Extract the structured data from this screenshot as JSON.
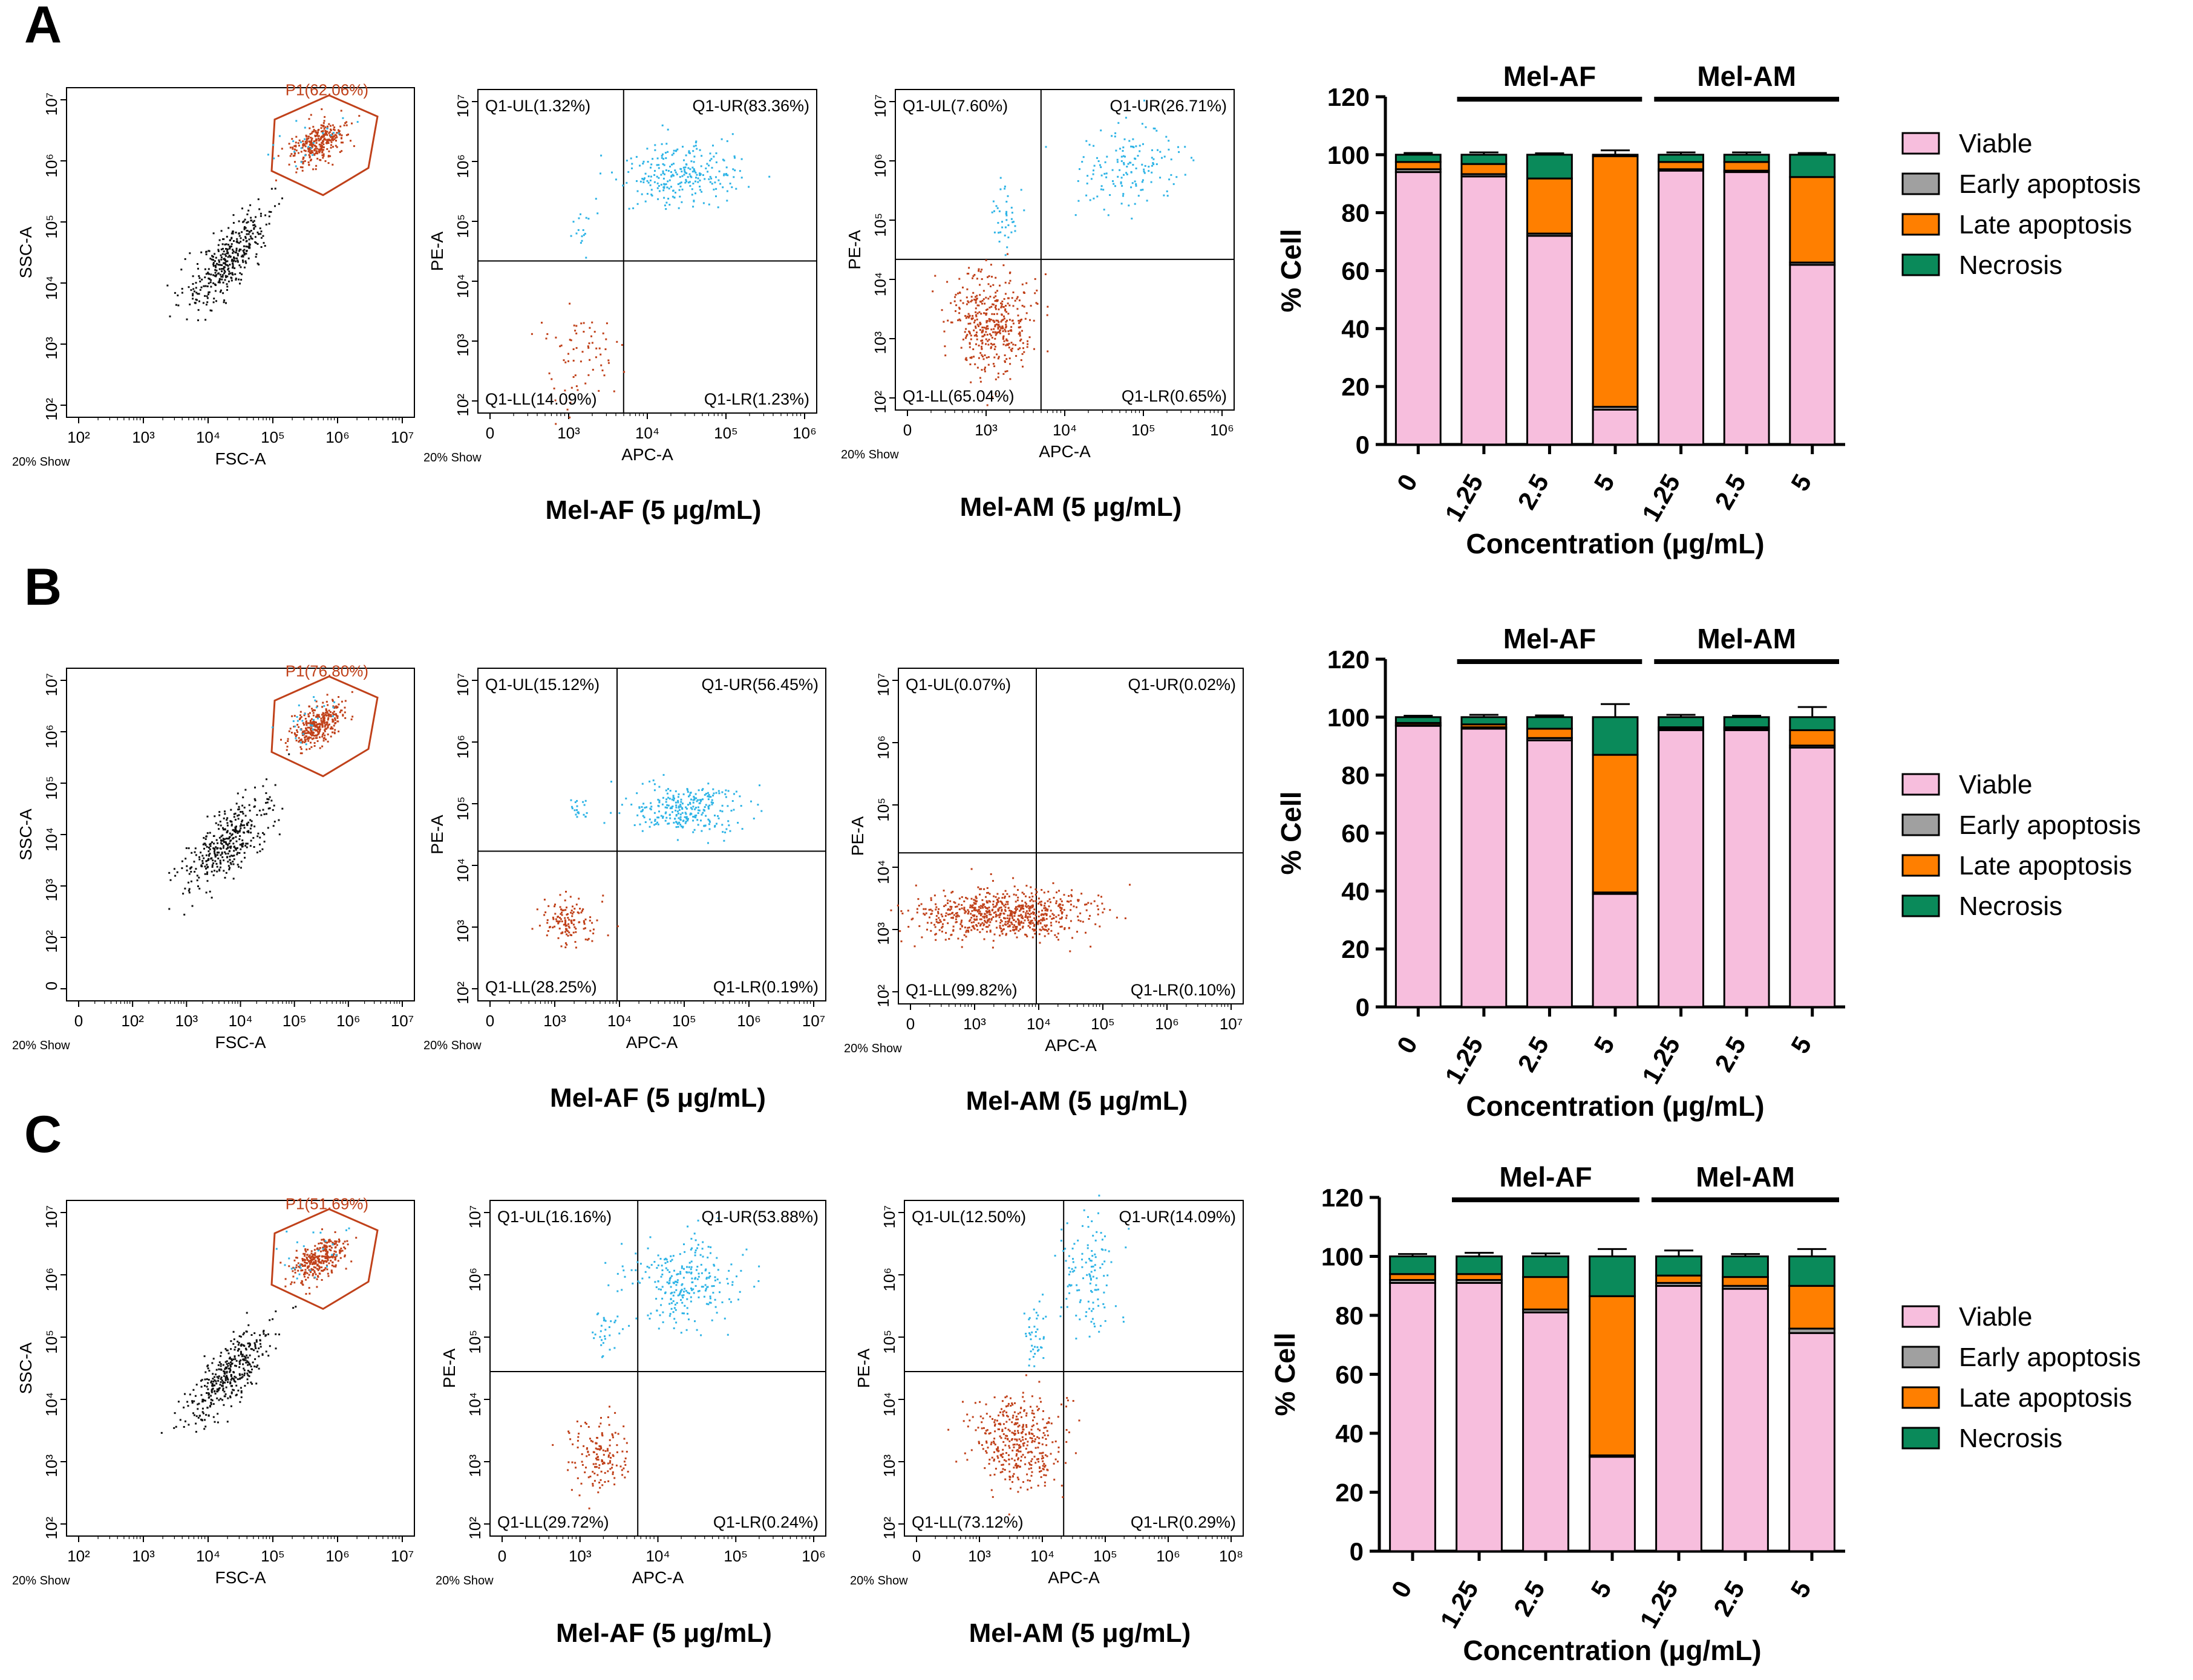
{
  "colors": {
    "viable": "#f7bedd",
    "early": "#a0a0a0",
    "late": "#ff7f00",
    "necrosis": "#0a8a5a",
    "live_dots": "#c0411a",
    "apoptotic_dots": "#2fb4e6",
    "debris_dots": "#111111",
    "gate": "#c0411a"
  },
  "panels": [
    {
      "letter": "A",
      "gate_plot": {
        "gate_label": "P1(62.06%)",
        "y_label": "SSC-A",
        "x_label": "FSC-A",
        "show_label": "20% Show",
        "x_ticks": [
          "10²",
          "10³",
          "10⁴",
          "10⁵",
          "10⁶",
          "10⁷"
        ],
        "y_ticks": [
          "10⁷",
          "10⁶",
          "10⁵",
          "10⁴",
          "10³",
          "10²"
        ]
      },
      "quadrant_plots": [
        {
          "caption": "Mel-AF (5 μg/mL)",
          "x_label": "APC-A",
          "y_label": "PE-A",
          "show_label": "20% Show",
          "ul": "Q1-UL(1.32%)",
          "ur": "Q1-UR(83.36%)",
          "ll": "Q1-LL(14.09%)",
          "lr": "Q1-LR(1.23%)",
          "x_ticks": [
            "0",
            "10³",
            "10⁴",
            "10⁵",
            "10⁶"
          ],
          "y_ticks": [
            "10⁷",
            "10⁶",
            "10⁵",
            "10⁴",
            "10³",
            "10²"
          ]
        },
        {
          "caption": "Mel-AM (5 μg/mL)",
          "x_label": "APC-A",
          "y_label": "PE-A",
          "show_label": "20% Show",
          "ul": "Q1-UL(7.60%)",
          "ur": "Q1-UR(26.71%)",
          "ll": "Q1-LL(65.04%)",
          "lr": "Q1-LR(0.65%)",
          "x_ticks": [
            "0",
            "10³",
            "10⁴",
            "10⁵",
            "10⁶"
          ],
          "y_ticks": [
            "10⁷",
            "10⁶",
            "10⁵",
            "10⁴",
            "10³",
            "10²"
          ]
        }
      ]
    },
    {
      "letter": "B",
      "gate_plot": {
        "gate_label": "P1(76.80%)",
        "y_label": "SSC-A",
        "x_label": "FSC-A",
        "show_label": "20% Show",
        "x_ticks": [
          "0",
          "10²",
          "10³",
          "10⁴",
          "10⁵",
          "10⁶",
          "10⁷"
        ],
        "y_ticks": [
          "10⁷",
          "10⁶",
          "10⁵",
          "10⁴",
          "10³",
          "10²",
          "0"
        ]
      },
      "quadrant_plots": [
        {
          "caption": "Mel-AF (5 μg/mL)",
          "x_label": "APC-A",
          "y_label": "PE-A",
          "show_label": "20% Show",
          "ul": "Q1-UL(15.12%)",
          "ur": "Q1-UR(56.45%)",
          "ll": "Q1-LL(28.25%)",
          "lr": "Q1-LR(0.19%)",
          "x_ticks": [
            "0",
            "10³",
            "10⁴",
            "10⁵",
            "10⁶",
            "10⁷"
          ],
          "y_ticks": [
            "10⁷",
            "10⁶",
            "10⁵",
            "10⁴",
            "10³",
            "10²"
          ]
        },
        {
          "caption": "Mel-AM (5 μg/mL)",
          "x_label": "APC-A",
          "y_label": "PE-A",
          "show_label": "20% Show",
          "ul": "Q1-UL(0.07%)",
          "ur": "Q1-UR(0.02%)",
          "ll": "Q1-LL(99.82%)",
          "lr": "Q1-LR(0.10%)",
          "x_ticks": [
            "0",
            "10³",
            "10⁴",
            "10⁵",
            "10⁶",
            "10⁷"
          ],
          "y_ticks": [
            "10⁷",
            "10⁶",
            "10⁵",
            "10⁴",
            "10³",
            "10²"
          ]
        }
      ]
    },
    {
      "letter": "C",
      "gate_plot": {
        "gate_label": "P1(51.69%)",
        "y_label": "SSC-A",
        "x_label": "FSC-A",
        "show_label": "20% Show",
        "x_ticks": [
          "10²",
          "10³",
          "10⁴",
          "10⁵",
          "10⁶",
          "10⁷"
        ],
        "y_ticks": [
          "10⁷",
          "10⁶",
          "10⁵",
          "10⁴",
          "10³",
          "10²"
        ]
      },
      "quadrant_plots": [
        {
          "caption": "Mel-AF (5 μg/mL)",
          "x_label": "APC-A",
          "y_label": "PE-A",
          "show_label": "20% Show",
          "ul": "Q1-UL(16.16%)",
          "ur": "Q1-UR(53.88%)",
          "ll": "Q1-LL(29.72%)",
          "lr": "Q1-LR(0.24%)",
          "x_ticks": [
            "0",
            "10³",
            "10⁴",
            "10⁵",
            "10⁶"
          ],
          "y_ticks": [
            "10⁷",
            "10⁶",
            "10⁵",
            "10⁴",
            "10³",
            "10²"
          ]
        },
        {
          "caption": "Mel-AM (5 μg/mL)",
          "x_label": "APC-A",
          "y_label": "PE-A",
          "show_label": "20% Show",
          "ul": "Q1-UL(12.50%)",
          "ur": "Q1-UR(14.09%)",
          "ll": "Q1-LL(73.12%)",
          "lr": "Q1-LR(0.29%)",
          "x_ticks": [
            "0",
            "10³",
            "10⁴",
            "10⁵",
            "10⁶",
            "10⁸"
          ],
          "y_ticks": [
            "10⁷",
            "10⁶",
            "10⁵",
            "10⁴",
            "10³",
            "10²"
          ]
        }
      ]
    }
  ],
  "chart_data": [
    {
      "type": "bar",
      "stacked": true,
      "panel": "A",
      "categories": [
        "0",
        "1.25",
        "2.5",
        "5",
        "1.25",
        "2.5",
        "5"
      ],
      "groups": [
        {
          "label": "Mel-AF",
          "from": 1,
          "to": 3
        },
        {
          "label": "Mel-AM",
          "from": 4,
          "to": 6
        }
      ],
      "series": [
        {
          "name": "Viable",
          "key": "viable",
          "values": [
            94,
            92.5,
            72,
            12,
            94.5,
            94,
            62
          ],
          "errors": [
            0.8,
            0.8,
            1,
            1,
            0.8,
            0.8,
            7
          ]
        },
        {
          "name": "Early apoptosis",
          "key": "early",
          "values": [
            1,
            0.8,
            0.8,
            1,
            0.5,
            0.5,
            0.8
          ]
        },
        {
          "name": "Late apoptosis",
          "key": "late",
          "values": [
            2.5,
            3.5,
            19,
            86.5,
            2.5,
            3,
            29.5
          ],
          "errors": [
            0.5,
            0.5,
            0.8,
            0.5,
            0.5,
            0.5,
            7
          ]
        },
        {
          "name": "Necrosis",
          "key": "necrosis",
          "values": [
            2.5,
            3.2,
            8.2,
            0.5,
            2.5,
            2.5,
            7.7
          ],
          "errors": [
            0.6,
            0.8,
            0.5,
            1.5,
            0.8,
            0.8,
            0.6
          ]
        }
      ],
      "ylabel": "% Cell",
      "xlabel": "Concentration (μg/mL)",
      "ylim": [
        0,
        120
      ],
      "yticks": [
        0,
        20,
        40,
        60,
        80,
        100,
        120
      ]
    },
    {
      "type": "bar",
      "stacked": true,
      "panel": "B",
      "categories": [
        "0",
        "1.25",
        "2.5",
        "5",
        "1.25",
        "2.5",
        "5"
      ],
      "groups": [
        {
          "label": "Mel-AF",
          "from": 1,
          "to": 3
        },
        {
          "label": "Mel-AM",
          "from": 4,
          "to": 6
        }
      ],
      "series": [
        {
          "name": "Viable",
          "key": "viable",
          "values": [
            97,
            96,
            92,
            39,
            95.5,
            95.5,
            89.5
          ],
          "errors": [
            0.3,
            0.5,
            0.6,
            15,
            0.4,
            0.5,
            0.8
          ]
        },
        {
          "name": "Early apoptosis",
          "key": "early",
          "values": [
            0.3,
            0.5,
            0.8,
            0.5,
            0.5,
            0.5,
            0.7
          ]
        },
        {
          "name": "Late apoptosis",
          "key": "late",
          "values": [
            0.7,
            1,
            3.2,
            47.5,
            0.5,
            0.5,
            5.3
          ],
          "errors": [
            0.2,
            0.3,
            1,
            0.6,
            0.2,
            0.2,
            1.2
          ]
        },
        {
          "name": "Necrosis",
          "key": "necrosis",
          "values": [
            2,
            2.5,
            4,
            13,
            3.5,
            3.5,
            4.5
          ],
          "errors": [
            0.5,
            0.8,
            0.6,
            4.5,
            0.8,
            0.5,
            3.5
          ]
        }
      ],
      "ylabel": "% Cell",
      "xlabel": "Concentration (μg/mL)",
      "ylim": [
        0,
        120
      ],
      "yticks": [
        0,
        20,
        40,
        60,
        80,
        100,
        120
      ]
    },
    {
      "type": "bar",
      "stacked": true,
      "panel": "C",
      "categories": [
        "0",
        "1.25",
        "2.5",
        "5",
        "1.25",
        "2.5",
        "5"
      ],
      "groups": [
        {
          "label": "Mel-AF",
          "from": 1,
          "to": 3
        },
        {
          "label": "Mel-AM",
          "from": 4,
          "to": 6
        }
      ],
      "series": [
        {
          "name": "Viable",
          "key": "viable",
          "values": [
            91,
            91,
            81,
            32,
            90,
            89,
            74
          ],
          "errors": [
            0.8,
            0.8,
            1,
            5,
            0.8,
            1,
            3.5
          ]
        },
        {
          "name": "Early apoptosis",
          "key": "early",
          "values": [
            1,
            1,
            1,
            0.5,
            1,
            1,
            1.5
          ]
        },
        {
          "name": "Late apoptosis",
          "key": "late",
          "values": [
            2,
            2,
            11,
            54,
            2.5,
            3,
            14.5
          ],
          "errors": [
            0.8,
            0.8,
            1,
            3.5,
            1,
            0.8,
            2.5
          ]
        },
        {
          "name": "Necrosis",
          "key": "necrosis",
          "values": [
            6,
            6,
            7,
            13.5,
            6.5,
            7,
            10
          ],
          "errors": [
            0.8,
            1.2,
            1,
            2.5,
            2,
            0.8,
            2.5
          ]
        }
      ],
      "ylabel": "% Cell",
      "xlabel": "Concentration (μg/mL)",
      "ylim": [
        0,
        120
      ],
      "yticks": [
        0,
        20,
        40,
        60,
        80,
        100,
        120
      ]
    }
  ]
}
